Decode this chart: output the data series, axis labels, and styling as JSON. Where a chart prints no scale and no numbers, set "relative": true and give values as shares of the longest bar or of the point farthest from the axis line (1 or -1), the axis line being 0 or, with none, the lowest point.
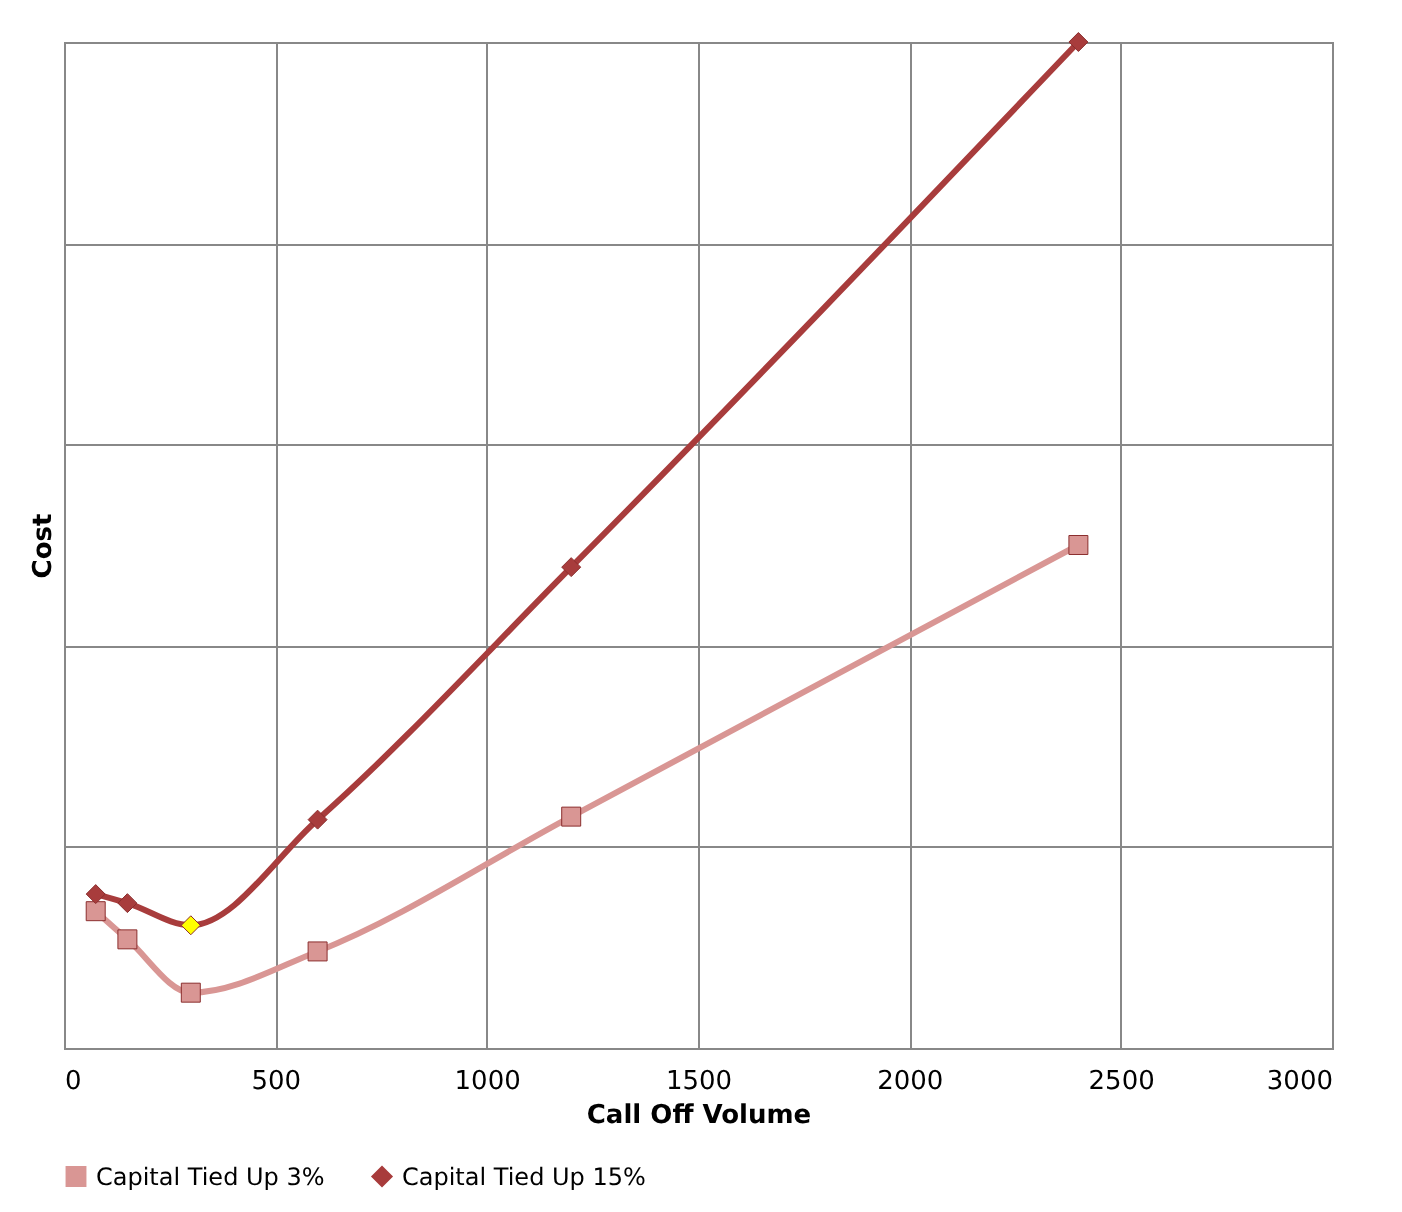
{
  "chart_data": {
    "type": "line",
    "xlabel": "Call Off Volume",
    "ylabel": "Cost",
    "relative": true,
    "xlim": [
      0,
      3000
    ],
    "xticks": [
      0,
      500,
      1000,
      1500,
      2000,
      2500,
      3000
    ],
    "grid": true,
    "legend": "bottom",
    "line_style": "solid",
    "series": [
      {
        "name": "Capital Tied Up 3%",
        "color": "#d99694",
        "marker": "square",
        "x": [
          75,
          150,
          300,
          600,
          1200,
          2400
        ],
        "values": [
          0.136,
          0.108,
          0.055,
          0.096,
          0.23,
          0.5
        ]
      },
      {
        "name": "Capital Tied Up 15%",
        "color": "#a83c3c",
        "marker": "diamond",
        "x": [
          75,
          150,
          300,
          600,
          1200,
          2400
        ],
        "values": [
          0.153,
          0.144,
          0.122,
          0.227,
          0.478,
          1
        ],
        "colors": [
          "#a83c3c",
          "#a83c3c",
          "#ffff00",
          "#a83c3c",
          "#a83c3c",
          "#a83c3c"
        ]
      }
    ]
  }
}
